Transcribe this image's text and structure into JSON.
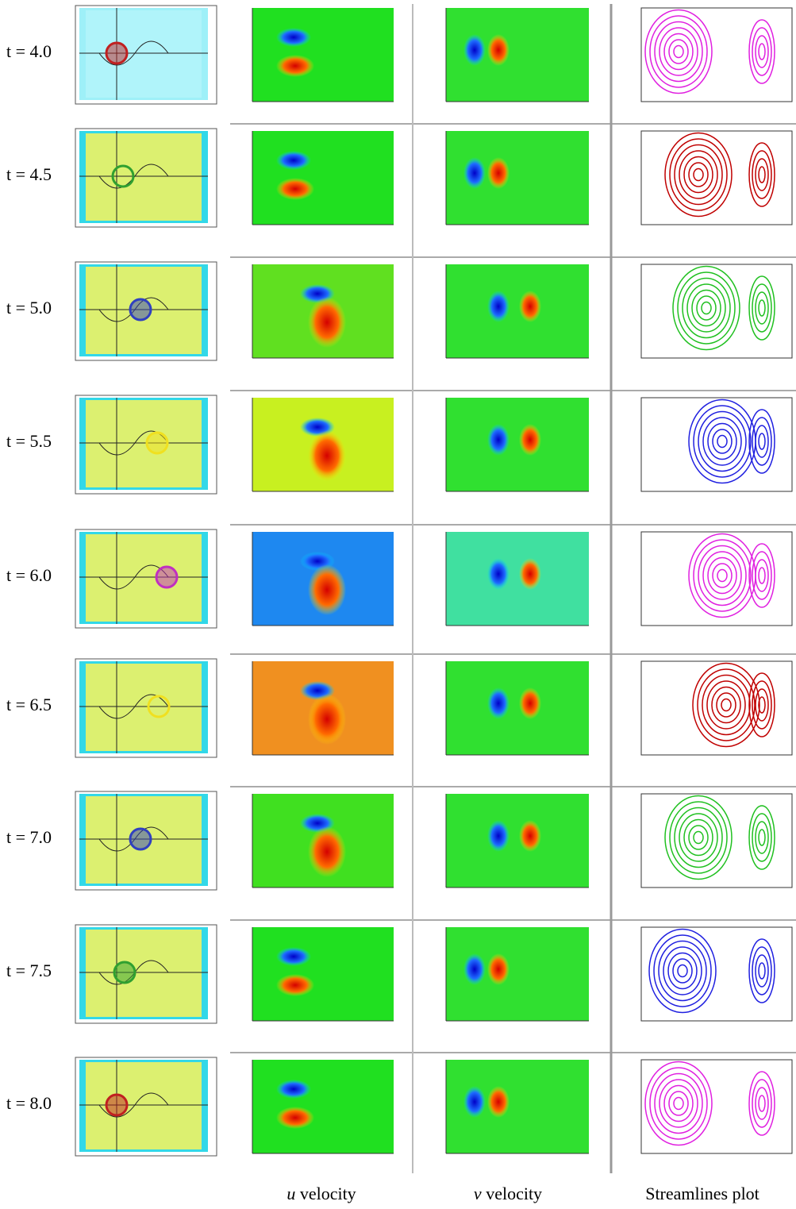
{
  "rows": [
    {
      "label": "t = 4.0"
    },
    {
      "label": "t = 4.5"
    },
    {
      "label": "t = 5.0"
    },
    {
      "label": "t = 5.5"
    },
    {
      "label": "t = 6.0"
    },
    {
      "label": "t = 6.5"
    },
    {
      "label": "t = 7.0"
    },
    {
      "label": "t = 7.5"
    },
    {
      "label": "t = 8.0"
    }
  ],
  "captions": [
    {
      "symbol": "u",
      "text": "velocity"
    },
    {
      "symbol": "v",
      "text": "velocity"
    },
    {
      "text": "Streamlines plot"
    }
  ]
}
